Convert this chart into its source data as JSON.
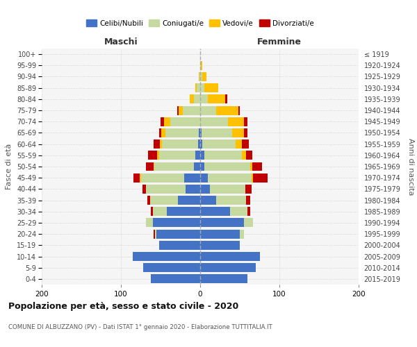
{
  "age_groups": [
    "0-4",
    "5-9",
    "10-14",
    "15-19",
    "20-24",
    "25-29",
    "30-34",
    "35-39",
    "40-44",
    "45-49",
    "50-54",
    "55-59",
    "60-64",
    "65-69",
    "70-74",
    "75-79",
    "80-84",
    "85-89",
    "90-94",
    "95-99",
    "100+"
  ],
  "birth_years": [
    "2015-2019",
    "2010-2014",
    "2005-2009",
    "2000-2004",
    "1995-1999",
    "1990-1994",
    "1985-1989",
    "1980-1984",
    "1975-1979",
    "1970-1974",
    "1965-1969",
    "1960-1964",
    "1955-1959",
    "1950-1954",
    "1945-1949",
    "1940-1944",
    "1935-1939",
    "1930-1934",
    "1925-1929",
    "1920-1924",
    "≤ 1919"
  ],
  "males_celibi": [
    62,
    72,
    85,
    52,
    55,
    60,
    42,
    28,
    18,
    20,
    8,
    6,
    3,
    2,
    0,
    0,
    0,
    0,
    0,
    0,
    0
  ],
  "males_coniugati": [
    0,
    0,
    0,
    0,
    2,
    8,
    18,
    35,
    50,
    55,
    50,
    46,
    45,
    42,
    38,
    22,
    8,
    4,
    1,
    0,
    0
  ],
  "males_vedovi": [
    0,
    0,
    0,
    0,
    0,
    0,
    0,
    0,
    0,
    1,
    1,
    2,
    3,
    5,
    8,
    5,
    5,
    2,
    1,
    0,
    0
  ],
  "males_divorziati": [
    0,
    0,
    0,
    0,
    2,
    0,
    2,
    4,
    5,
    8,
    9,
    12,
    8,
    3,
    4,
    2,
    0,
    0,
    0,
    0,
    0
  ],
  "females_nubili": [
    60,
    70,
    75,
    50,
    50,
    55,
    38,
    20,
    12,
    10,
    5,
    5,
    3,
    2,
    0,
    0,
    0,
    0,
    0,
    0,
    0
  ],
  "females_coniugate": [
    0,
    0,
    0,
    0,
    5,
    12,
    22,
    38,
    45,
    55,
    58,
    48,
    42,
    38,
    35,
    20,
    10,
    5,
    3,
    1,
    0
  ],
  "females_vedove": [
    0,
    0,
    0,
    0,
    0,
    0,
    0,
    0,
    0,
    2,
    3,
    5,
    8,
    15,
    20,
    28,
    22,
    18,
    5,
    2,
    0
  ],
  "females_divorziate": [
    0,
    0,
    0,
    0,
    0,
    0,
    3,
    5,
    8,
    18,
    12,
    8,
    8,
    5,
    5,
    2,
    2,
    0,
    0,
    0,
    0
  ],
  "color_celibi": "#4472c4",
  "color_coniugati": "#c5d9a1",
  "color_vedovi": "#ffc000",
  "color_divorziati": "#c00000",
  "title1": "Popolazione per età, sesso e stato civile - 2020",
  "title2": "COMUNE DI ALBUZZANO (PV) - Dati ISTAT 1° gennaio 2020 - Elaborazione TUTTITALIA.IT",
  "label_maschi": "Maschi",
  "label_femmine": "Femmine",
  "label_fascedelta": "Fasce di età",
  "label_anninascita": "Anni di nascita",
  "legend_labels": [
    "Celibi/Nubili",
    "Coniugati/e",
    "Vedovi/e",
    "Divorziati/e"
  ],
  "xlim": 200,
  "bg_color": "#ffffff",
  "plot_bg_color": "#f5f5f5",
  "grid_color": "#cccccc"
}
